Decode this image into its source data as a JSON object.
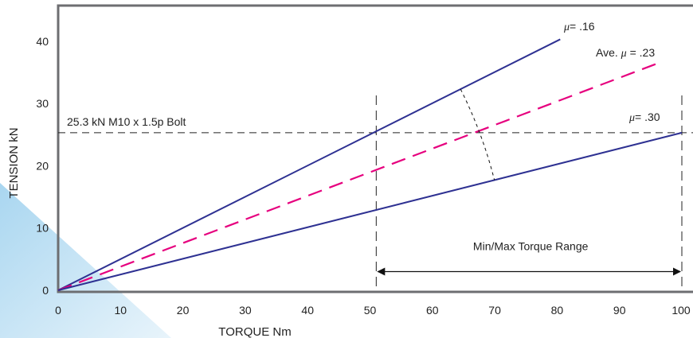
{
  "chart_data": {
    "type": "line",
    "title": "",
    "xlabel": "TORQUE Nm",
    "ylabel": "TENSION kN",
    "xlim": [
      0,
      100
    ],
    "ylim": [
      0,
      45
    ],
    "x_ticks": [
      "0",
      "10",
      "20",
      "30",
      "40",
      "50",
      "60",
      "70",
      "80",
      "90",
      "100"
    ],
    "y_ticks": [
      "0",
      "10",
      "20",
      "30",
      "40"
    ],
    "grid": false,
    "series": [
      {
        "name": "μ = .16",
        "style": "solid",
        "color": "#2e3192",
        "x": [
          0,
          80.5
        ],
        "y": [
          0,
          40.3
        ]
      },
      {
        "name": "Ave. μ = .23",
        "style": "dashed",
        "color": "#e6007e",
        "x": [
          0,
          96
        ],
        "y": [
          0,
          36.4
        ]
      },
      {
        "name": "μ = .30",
        "style": "solid",
        "color": "#2e3192",
        "x": [
          0,
          100
        ],
        "y": [
          0,
          25.3
        ]
      }
    ],
    "reference_lines": [
      {
        "orientation": "horizontal",
        "value": 25.3,
        "label": "25.3 kN  M10 x 1.5p Bolt"
      },
      {
        "orientation": "vertical",
        "value": 51
      },
      {
        "orientation": "vertical",
        "value": 100
      }
    ],
    "range_annotation": {
      "from": 51,
      "to": 100,
      "y": 3,
      "label": "Min/Max Torque Range"
    },
    "line_labels": {
      "low_mu_symbol": "μ",
      "low_mu_eq": "= ",
      "low_mu_value": ".16",
      "ave_prefix": "Ave. ",
      "ave_mu_symbol": "μ",
      "ave_mu_eq": " = ",
      "ave_mu_value": ".23",
      "high_mu_symbol": "μ",
      "high_mu_eq": "= ",
      "high_mu_value": ".30"
    },
    "colors": {
      "frame": "#6d6e71",
      "solid_line": "#2e3192",
      "dashed_line": "#e6007e",
      "background_wedge": "#bfe0f3"
    }
  }
}
